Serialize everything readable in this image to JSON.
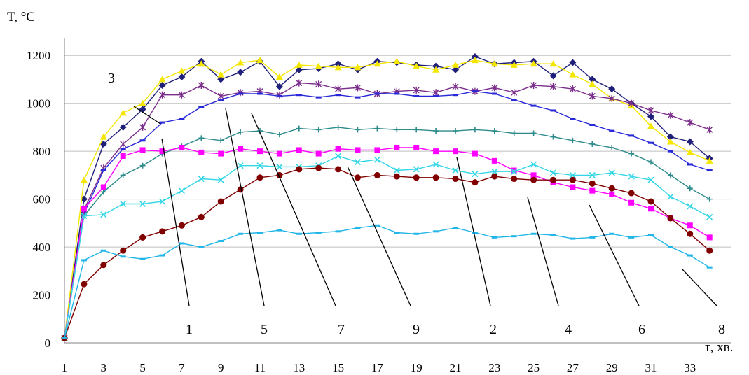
{
  "chart_data": {
    "type": "line",
    "title": "",
    "ylabel": "T, °C",
    "xlabel": "τ, хв.",
    "ylim": [
      0,
      1300
    ],
    "xlim": [
      1,
      34
    ],
    "yticks": [
      0,
      200,
      400,
      600,
      800,
      1000,
      1200
    ],
    "xticks": [
      1,
      3,
      5,
      7,
      9,
      11,
      13,
      15,
      17,
      19,
      21,
      23,
      25,
      27,
      29,
      31,
      33
    ],
    "grid": "horizontal",
    "legend": "none",
    "x": [
      1,
      2,
      3,
      4,
      5,
      6,
      7,
      8,
      9,
      10,
      11,
      12,
      13,
      14,
      15,
      16,
      17,
      18,
      19,
      20,
      21,
      22,
      23,
      24,
      25,
      26,
      27,
      28,
      29,
      30,
      31,
      32,
      33,
      34
    ],
    "series": [
      {
        "name": "1",
        "color": "#1f1f7a",
        "marker": "diamond",
        "values": [
          20,
          600,
          830,
          900,
          975,
          1075,
          1110,
          1175,
          1100,
          1130,
          1175,
          1070,
          1140,
          1145,
          1165,
          1140,
          1175,
          1170,
          1160,
          1155,
          1140,
          1195,
          1165,
          1170,
          1175,
          1115,
          1170,
          1100,
          1060,
          1000,
          945,
          860,
          840,
          770
        ]
      },
      {
        "name": "3",
        "color": "#f5e600",
        "marker": "triangle",
        "values": [
          20,
          680,
          860,
          960,
          1000,
          1100,
          1135,
          1165,
          1120,
          1170,
          1180,
          1110,
          1160,
          1155,
          1150,
          1150,
          1165,
          1175,
          1155,
          1140,
          1160,
          1180,
          1165,
          1160,
          1165,
          1165,
          1120,
          1080,
          1020,
          990,
          905,
          840,
          795,
          760
        ]
      },
      {
        "name": "5",
        "color": "#7b2d8b",
        "marker": "asterisk",
        "values": [
          20,
          555,
          730,
          830,
          900,
          1035,
          1035,
          1075,
          1030,
          1045,
          1050,
          1035,
          1085,
          1080,
          1060,
          1065,
          1040,
          1050,
          1055,
          1045,
          1070,
          1050,
          1065,
          1045,
          1075,
          1070,
          1060,
          1030,
          1020,
          1000,
          970,
          950,
          920,
          890
        ]
      },
      {
        "name": "7",
        "color": "#2828d8",
        "marker": "dash",
        "values": [
          20,
          540,
          720,
          810,
          845,
          920,
          935,
          985,
          1015,
          1040,
          1040,
          1030,
          1035,
          1025,
          1035,
          1025,
          1040,
          1040,
          1030,
          1030,
          1035,
          1050,
          1040,
          1015,
          990,
          970,
          935,
          910,
          885,
          865,
          835,
          800,
          745,
          720
        ]
      },
      {
        "name": "9",
        "color": "#2e8b8b",
        "marker": "plus",
        "values": [
          20,
          530,
          630,
          700,
          740,
          790,
          820,
          855,
          845,
          880,
          885,
          870,
          895,
          890,
          900,
          890,
          895,
          890,
          890,
          885,
          885,
          890,
          885,
          875,
          875,
          860,
          845,
          830,
          815,
          790,
          755,
          700,
          645,
          600
        ]
      },
      {
        "name": "2",
        "color": "#ff00ff",
        "marker": "square",
        "values": [
          20,
          560,
          650,
          780,
          805,
          800,
          815,
          795,
          790,
          810,
          800,
          790,
          805,
          790,
          810,
          805,
          805,
          815,
          815,
          800,
          800,
          790,
          760,
          720,
          700,
          670,
          650,
          635,
          620,
          585,
          560,
          520,
          490,
          440
        ]
      },
      {
        "name": "4",
        "color": "#33d6e6",
        "marker": "x",
        "values": [
          20,
          530,
          535,
          580,
          580,
          590,
          635,
          685,
          680,
          740,
          740,
          735,
          735,
          740,
          780,
          755,
          765,
          720,
          725,
          745,
          720,
          705,
          715,
          715,
          745,
          710,
          700,
          700,
          710,
          695,
          680,
          610,
          570,
          525
        ]
      },
      {
        "name": "6",
        "color": "#800000",
        "marker": "circle",
        "values": [
          20,
          245,
          325,
          385,
          440,
          465,
          490,
          525,
          590,
          640,
          690,
          700,
          725,
          730,
          725,
          690,
          700,
          695,
          690,
          690,
          685,
          670,
          695,
          685,
          680,
          680,
          680,
          665,
          645,
          625,
          590,
          520,
          455,
          385
        ]
      },
      {
        "name": "8",
        "color": "#22b6e8",
        "marker": "dash",
        "values": [
          20,
          345,
          385,
          360,
          350,
          365,
          415,
          400,
          425,
          455,
          460,
          470,
          455,
          460,
          465,
          480,
          490,
          460,
          455,
          465,
          480,
          460,
          440,
          445,
          455,
          450,
          435,
          440,
          455,
          440,
          450,
          400,
          365,
          315
        ]
      }
    ],
    "callouts": [
      {
        "label": "3",
        "series": "3"
      },
      {
        "label": "1",
        "series": "1"
      },
      {
        "label": "5",
        "series": "5"
      },
      {
        "label": "7",
        "series": "7"
      },
      {
        "label": "9",
        "series": "9"
      },
      {
        "label": "2",
        "series": "2"
      },
      {
        "label": "4",
        "series": "4"
      },
      {
        "label": "6",
        "series": "6"
      },
      {
        "label": "8",
        "series": "8"
      }
    ]
  }
}
